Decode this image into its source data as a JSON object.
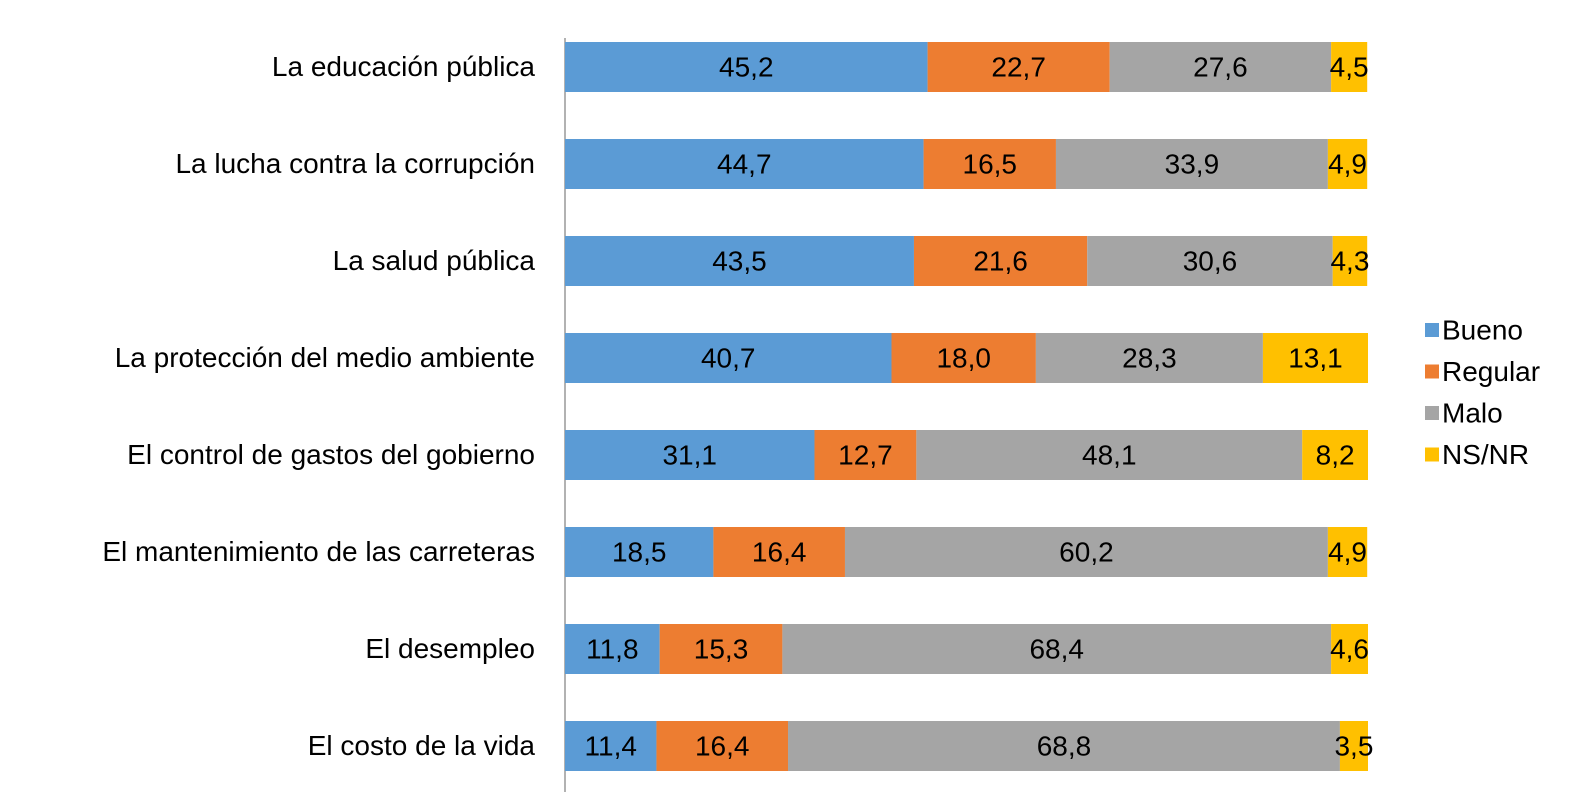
{
  "chart_data": {
    "type": "stacked-bar-horizontal",
    "categories": [
      "La educación pública",
      "La lucha contra la corrupción",
      "La salud pública",
      "La protección del medio ambiente",
      "El control de gastos del gobierno",
      "El mantenimiento de las carreteras",
      "El desempleo",
      "El costo de la vida"
    ],
    "series": [
      {
        "name": "Bueno",
        "color": "#5b9bd5",
        "values": [
          45.2,
          44.7,
          43.5,
          40.7,
          31.1,
          18.5,
          11.8,
          11.4
        ],
        "value_labels": [
          "45,2",
          "44,7",
          "43,5",
          "40,7",
          "31,1",
          "18,5",
          "11,8",
          "11,4"
        ]
      },
      {
        "name": "Regular",
        "color": "#ed7d31",
        "values": [
          22.7,
          16.5,
          21.6,
          18.0,
          12.7,
          16.4,
          15.3,
          16.4
        ],
        "value_labels": [
          "22,7",
          "16,5",
          "21,6",
          "18,0",
          "12,7",
          "16,4",
          "15,3",
          "16,4"
        ]
      },
      {
        "name": "Malo",
        "color": "#a5a5a5",
        "values": [
          27.6,
          33.9,
          30.6,
          28.3,
          48.1,
          60.2,
          68.4,
          68.8
        ],
        "value_labels": [
          "27,6",
          "33,9",
          "30,6",
          "28,3",
          "48,1",
          "60,2",
          "68,4",
          "68,8"
        ]
      },
      {
        "name": "NS/NR",
        "color": "#ffc000",
        "values": [
          4.5,
          4.9,
          4.3,
          13.1,
          8.2,
          4.9,
          4.6,
          3.5
        ],
        "value_labels": [
          "4,5",
          "4,9",
          "4,3",
          "13,1",
          "8,2",
          "4,9",
          "4,6",
          "3,5"
        ]
      }
    ],
    "legend": "right"
  }
}
